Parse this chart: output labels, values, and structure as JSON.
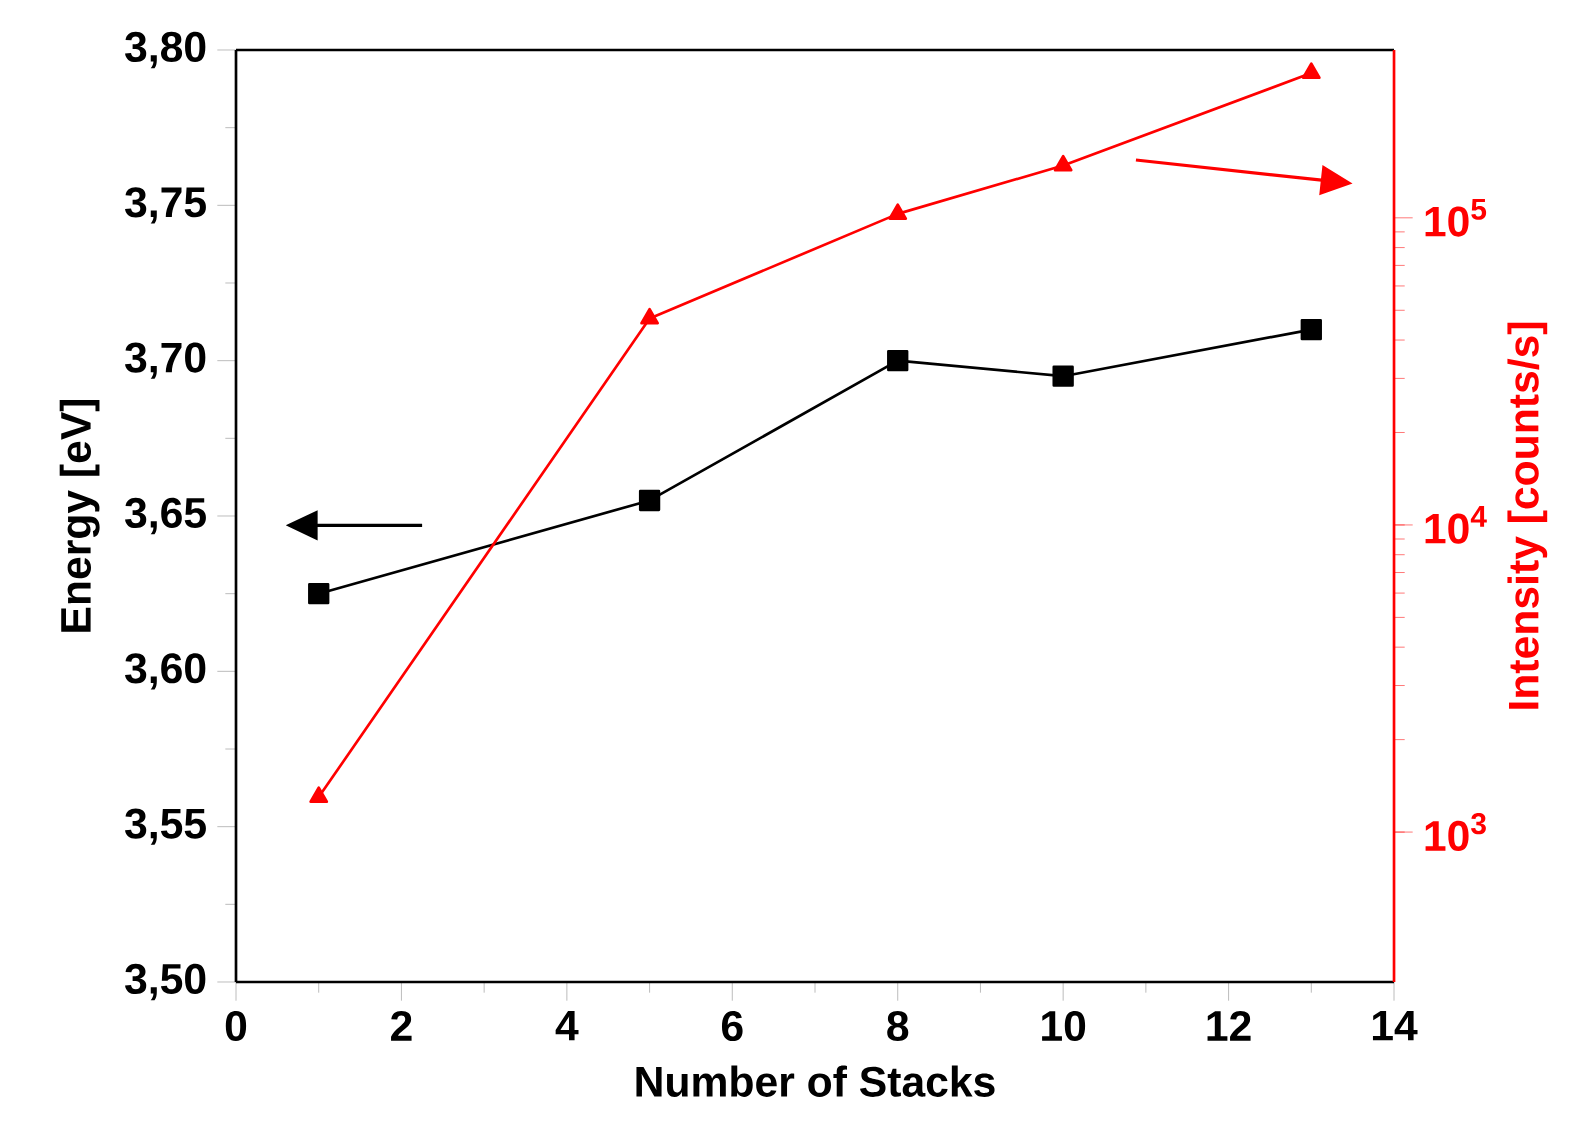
{
  "chart_data": {
    "type": "line",
    "xlabel": "Number of Stacks",
    "ylabel": "Energy [eV]",
    "y2label": "Intensity [counts/s]",
    "x": [
      1,
      5,
      8,
      10,
      13
    ],
    "xlim": [
      0,
      14
    ],
    "xticks": [
      0,
      2,
      4,
      6,
      8,
      10,
      12,
      14
    ],
    "ylim": [
      3.5,
      3.8
    ],
    "yticks": [
      {
        "value": 3.5,
        "label": "3,50"
      },
      {
        "value": 3.55,
        "label": "3,55"
      },
      {
        "value": 3.6,
        "label": "3,60"
      },
      {
        "value": 3.65,
        "label": "3,65"
      },
      {
        "value": 3.7,
        "label": "3,70"
      },
      {
        "value": 3.75,
        "label": "3,75"
      },
      {
        "value": 3.8,
        "label": "3,80"
      }
    ],
    "y2lim": [
      325,
      352000
    ],
    "y2ticks": [
      {
        "value": 1000,
        "label": "10$^{3}$"
      },
      {
        "value": 10000,
        "label": "10$^{4}$"
      },
      {
        "value": 100000,
        "label": "10$^{5}$"
      }
    ],
    "log": "y2",
    "grid": false,
    "series": [
      {
        "color": "#000000",
        "marker": "square",
        "values": [
          3.625,
          3.655,
          3.7,
          3.695,
          3.71
        ]
      },
      {
        "color": "#ff0000",
        "marker": "triangle",
        "axis": "y2",
        "values": [
          1300,
          47000,
          103000,
          148000,
          296000
        ]
      }
    ]
  }
}
